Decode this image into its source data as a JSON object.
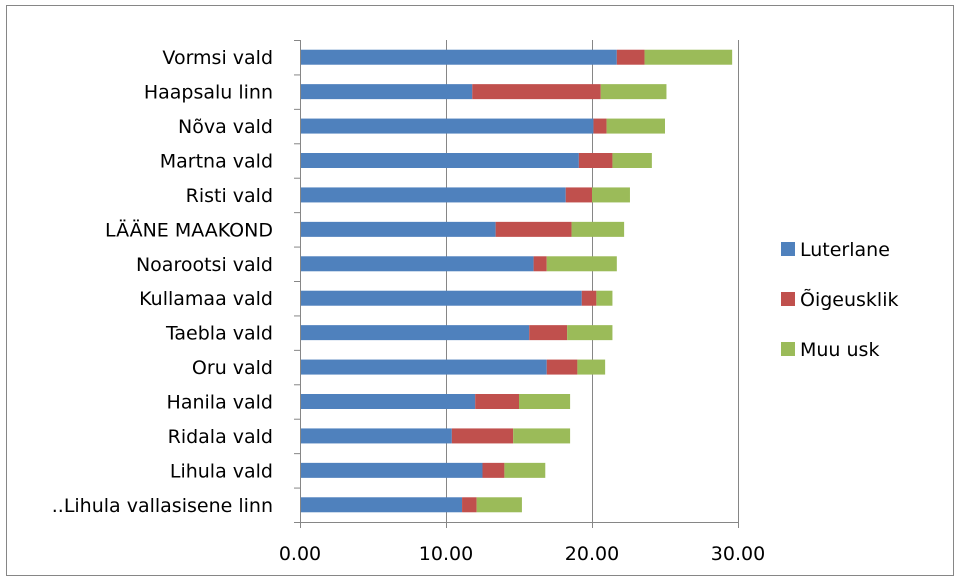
{
  "chart_data": {
    "type": "bar",
    "orientation": "horizontal",
    "stacked": true,
    "categories": [
      "Vormsi vald",
      "Haapsalu linn",
      "Nõva vald",
      "Martna vald",
      "Risti vald",
      "LÄÄNE MAAKOND",
      "Noarootsi vald",
      "Kullamaa vald",
      "Taebla vald",
      "Oru vald",
      "Hanila vald",
      "Ridala vald",
      "Lihula vald",
      "..Lihula vallasisene linn"
    ],
    "series": [
      {
        "name": "Luterlane",
        "color": "#4F81BD",
        "values": [
          21.7,
          11.8,
          20.1,
          19.1,
          18.2,
          13.4,
          16.0,
          19.3,
          15.7,
          16.9,
          12.0,
          10.4,
          12.5,
          11.1
        ]
      },
      {
        "name": "Õigeusklik",
        "color": "#C0504D",
        "values": [
          1.9,
          8.8,
          0.9,
          2.3,
          1.8,
          5.2,
          0.9,
          1.0,
          2.6,
          2.1,
          3.0,
          4.2,
          1.5,
          1.0
        ]
      },
      {
        "name": "Muu usk",
        "color": "#9BBB59",
        "values": [
          6.0,
          4.5,
          4.0,
          2.7,
          2.6,
          3.6,
          4.8,
          1.1,
          3.1,
          1.9,
          3.5,
          3.9,
          2.8,
          3.1
        ]
      }
    ],
    "xlim": [
      0,
      30
    ],
    "xticks": [
      "0.00",
      "10.00",
      "20.00",
      "30.00"
    ],
    "xtick_values": [
      0,
      10,
      20,
      30
    ],
    "grid": "vertical",
    "legend_position": "right"
  }
}
